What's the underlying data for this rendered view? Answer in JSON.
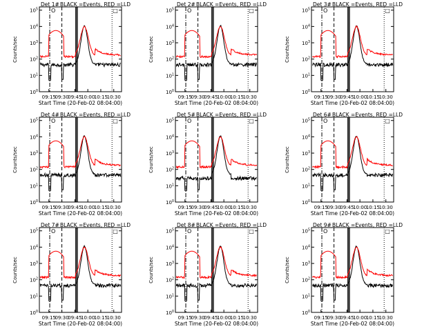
{
  "colors": {
    "events": "#000000",
    "lld": "#ff0000",
    "background": "#ffffff",
    "axes": "#000000"
  },
  "shared": {
    "x_tick_labels": [
      "09:15",
      "09:30",
      "09:45",
      "10:00",
      "10:15",
      "10:30"
    ],
    "x_tick_times_min": [
      555,
      570,
      585,
      600,
      615,
      630
    ],
    "x_range_min": [
      544,
      639
    ],
    "y_tick_exponents": [
      "0",
      "1",
      "2",
      "3",
      "4",
      "5"
    ],
    "y_range_log10": [
      0,
      5.2
    ],
    "ylabel": "Counts/sec",
    "xlabel": "Start Time (20-Feb-02 08:04:00)",
    "title_suffix": "BLACK =Events, RED =LLD",
    "marker_glyph": "O",
    "box_glyph": "□"
  },
  "chart_data": [
    {
      "type": "line",
      "title_prefix": "Det 1#",
      "series": [
        {
          "name": "Events",
          "color": "#000000",
          "style": "normal"
        },
        {
          "name": "LLD",
          "color": "#ff0000",
          "style": "normal"
        }
      ],
      "vlines_dashdot_min": [
        556
      ],
      "vlines_dashed_min": [
        570
      ],
      "vlines_solid_min": [
        586,
        587,
        588
      ],
      "vlines_dotted_min": [
        628
      ]
    },
    {
      "type": "line",
      "title_prefix": "Det 2#",
      "series": [
        {
          "name": "Events",
          "color": "#000000",
          "style": "normal"
        },
        {
          "name": "LLD",
          "color": "#ff0000",
          "style": "normal"
        }
      ],
      "vlines_dashdot_min": [
        556
      ],
      "vlines_dashed_min": [
        570
      ],
      "vlines_solid_min": [
        586,
        587,
        588
      ],
      "vlines_dotted_min": [
        628
      ]
    },
    {
      "type": "line",
      "title_prefix": "Det 3#",
      "series": [
        {
          "name": "Events",
          "color": "#000000",
          "style": "normal"
        },
        {
          "name": "LLD",
          "color": "#ff0000",
          "style": "normal"
        }
      ],
      "vlines_dashdot_min": [
        556
      ],
      "vlines_dashed_min": [
        570
      ],
      "vlines_solid_min": [
        586,
        587,
        588
      ],
      "vlines_dotted_min": [
        628
      ]
    },
    {
      "type": "line",
      "title_prefix": "Det 4#",
      "series": [
        {
          "name": "Events",
          "color": "#000000",
          "style": "normal"
        },
        {
          "name": "LLD",
          "color": "#ff0000",
          "style": "normal"
        }
      ],
      "vlines_dashdot_min": [
        556
      ],
      "vlines_dashed_min": [
        570
      ],
      "vlines_solid_min": [
        586,
        587,
        588
      ],
      "vlines_dotted_min": [
        628
      ]
    },
    {
      "type": "line",
      "title_prefix": "Det 5#",
      "series": [
        {
          "name": "Events",
          "color": "#000000",
          "style": "high"
        },
        {
          "name": "LLD",
          "color": "#ff0000",
          "style": "normal"
        }
      ],
      "vlines_dashdot_min": [
        556
      ],
      "vlines_dashed_min": [
        570
      ],
      "vlines_solid_min": [
        586,
        587,
        588
      ],
      "vlines_dotted_min": [
        628
      ]
    },
    {
      "type": "line",
      "title_prefix": "Det 6#",
      "series": [
        {
          "name": "Events",
          "color": "#000000",
          "style": "normal"
        },
        {
          "name": "LLD",
          "color": "#ff0000",
          "style": "normal"
        }
      ],
      "vlines_dashdot_min": [
        556
      ],
      "vlines_dashed_min": [
        570
      ],
      "vlines_solid_min": [
        586,
        587,
        588
      ],
      "vlines_dotted_min": [
        628
      ]
    },
    {
      "type": "line",
      "title_prefix": "Det 7#",
      "series": [
        {
          "name": "Events",
          "color": "#000000",
          "style": "normal"
        },
        {
          "name": "LLD",
          "color": "#ff0000",
          "style": "normal"
        }
      ],
      "vlines_dashdot_min": [
        556
      ],
      "vlines_dashed_min": [
        570
      ],
      "vlines_solid_min": [
        586,
        587,
        588
      ],
      "vlines_dotted_min": [
        628
      ]
    },
    {
      "type": "line",
      "title_prefix": "Det 8#",
      "series": [
        {
          "name": "Events",
          "color": "#000000",
          "style": "normal"
        },
        {
          "name": "LLD",
          "color": "#ff0000",
          "style": "normal"
        }
      ],
      "vlines_dashdot_min": [
        556
      ],
      "vlines_dashed_min": [
        570
      ],
      "vlines_solid_min": [
        586,
        587,
        588
      ],
      "vlines_dotted_min": [
        628
      ]
    },
    {
      "type": "line",
      "title_prefix": "Det 9#",
      "series": [
        {
          "name": "Events",
          "color": "#000000",
          "style": "normal"
        },
        {
          "name": "LLD",
          "color": "#ff0000",
          "style": "normal"
        }
      ],
      "vlines_dashdot_min": [
        556
      ],
      "vlines_dashed_min": [
        570
      ],
      "vlines_solid_min": [
        586,
        587,
        588
      ],
      "vlines_dotted_min": [
        628
      ]
    }
  ]
}
